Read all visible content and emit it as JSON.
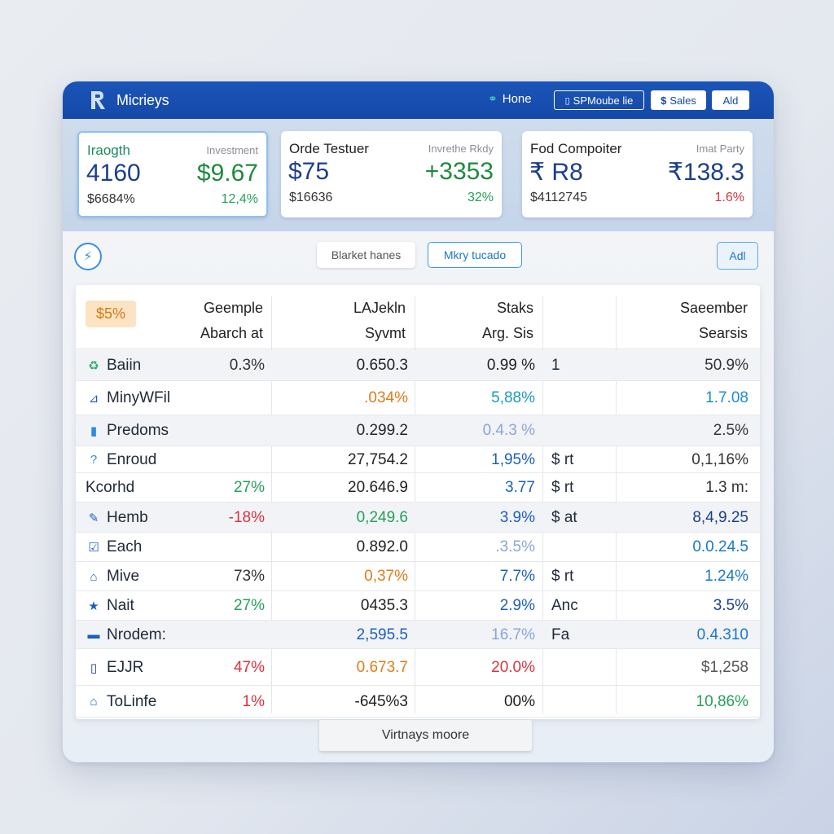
{
  "app": {
    "title": "Micrieys",
    "nav": {
      "home": "Hone",
      "mobile": "SPMoube lie",
      "sales": "Sales",
      "add": "Ald"
    }
  },
  "kpis": [
    {
      "title": "Iraogth",
      "subtitle": "Investment",
      "big1": "4160",
      "big2": "$9.67",
      "sub1": "$6684%",
      "sub2": "12,4%",
      "big2_color": "#1d8a3e",
      "sub2_color": "#24a05a"
    },
    {
      "title": "Orde Testuer",
      "subtitle": "Invrethe Rkdy",
      "big1": "$75",
      "big2": "+3353",
      "sub1": "$16636",
      "sub2": "32%",
      "big2_color": "#1d8a3e",
      "sub2_color": "#24a05a"
    },
    {
      "title": "Fod Compoiter",
      "subtitle": "Imat Party",
      "big1": "₹ R8",
      "big2": "₹138.3",
      "sub1": "$4112745",
      "sub2": "1.6%",
      "big2_color": "#1b3f8a",
      "sub2_color": "#d9333d"
    }
  ],
  "toolbar": {
    "market_btn": "Blarket hanes",
    "mode_btn": "Mkry tucado",
    "add_btn": "Adl"
  },
  "table": {
    "badge": "$5%",
    "headers": {
      "col1_line1": "Geemple",
      "col1_line2": "Abarch at",
      "col2_line1": "LAJekln",
      "col2_line2": "Syvmt",
      "col3_line1": "Staks",
      "col3_line2": "Arg. Sis",
      "col5_line1": "Saeember",
      "col5_line2": "Searsis"
    },
    "rows": [
      {
        "icon": "recycle-icon",
        "glyph": "♻",
        "icon_color": "#2fa86a",
        "name": "Baiin",
        "chg": "0.3%",
        "chg_color": "#333333",
        "val": "0.650.3",
        "val_color": "#222222",
        "pct": "0.99 %",
        "pct_color": "#222222",
        "s": "1",
        "last": "50.9%",
        "last_color": "#333333"
      },
      {
        "icon": "chart-icon",
        "glyph": "⊿",
        "icon_color": "#1c5fc0",
        "name": "MinyWFil",
        "chg": "",
        "chg_color": "#333333",
        "val": ".034%",
        "val_color": "#e07b1a",
        "pct": "5,88%",
        "pct_color": "#1a9cb8",
        "s": "",
        "last": "1.7.08",
        "last_color": "#1a8fc8"
      },
      {
        "icon": "doc-icon",
        "glyph": "▮",
        "icon_color": "#2a8be0",
        "name": "Predoms",
        "chg": "",
        "chg_color": "#333333",
        "val": "0.299.2",
        "val_color": "#222222",
        "pct": "0.4.3 %",
        "pct_color": "#8aa6d8",
        "s": "",
        "last": "2.5%",
        "last_color": "#333333"
      },
      {
        "icon": "help-icon",
        "glyph": "?",
        "icon_color": "#2a8be0",
        "name": "Enroud",
        "chg": "",
        "chg_color": "#333333",
        "val": "27,754.2",
        "val_color": "#222222",
        "pct": "1,95%",
        "pct_color": "#1c5fc0",
        "s": "$ rt",
        "last": "0,1,16%",
        "last_color": "#333333"
      },
      {
        "icon": "",
        "glyph": "",
        "icon_color": "#333333",
        "name": "Kcorhd",
        "chg": "27%",
        "chg_color": "#24a05a",
        "val": "20.646.9",
        "val_color": "#222222",
        "pct": "3.77",
        "pct_color": "#1c5fc0",
        "s": "$ rt",
        "last": "1.3 m:",
        "last_color": "#333333"
      },
      {
        "icon": "wrench-icon",
        "glyph": "✎",
        "icon_color": "#1c5fc0",
        "name": "Hemb",
        "chg": "-18%",
        "chg_color": "#d9333d",
        "val": "0,249.6",
        "val_color": "#24a05a",
        "pct": "3.9%",
        "pct_color": "#1c5fc0",
        "s": "$ at",
        "last": "8,4,9.25",
        "last_color": "#1b3f8a"
      },
      {
        "icon": "check-icon",
        "glyph": "☑",
        "icon_color": "#1c5fc0",
        "name": "Each",
        "chg": "",
        "chg_color": "#333333",
        "val": "0.892.0",
        "val_color": "#222222",
        "pct": ".3.5%",
        "pct_color": "#8aa6d8",
        "s": "",
        "last": "0.0.24.5",
        "last_color": "#1a78c8"
      },
      {
        "icon": "home-icon",
        "glyph": "⌂",
        "icon_color": "#1c5fc0",
        "name": "Mive",
        "chg": "73%",
        "chg_color": "#333333",
        "val": "0,37%",
        "val_color": "#e07b1a",
        "pct": "7.7%",
        "pct_color": "#1c5fc0",
        "s": "$ rt",
        "last": "1.24%",
        "last_color": "#1a78c8"
      },
      {
        "icon": "star-icon",
        "glyph": "★",
        "icon_color": "#1c5fc0",
        "name": "Nait",
        "chg": "27%",
        "chg_color": "#24a05a",
        "val": "0435.3",
        "val_color": "#222222",
        "pct": "2.9%",
        "pct_color": "#1c5fc0",
        "s": "Anc",
        "last": "3.5%",
        "last_color": "#1b3f8a"
      },
      {
        "icon": "card-icon",
        "glyph": "▬",
        "icon_color": "#1c5fc0",
        "name": "Nrodem:",
        "chg": "",
        "chg_color": "#333333",
        "val": "2,595.5",
        "val_color": "#1c5fc0",
        "pct": "16.7%",
        "pct_color": "#8aa6d8",
        "s": "Fa",
        "last": "0.4.310",
        "last_color": "#1a78c8"
      },
      {
        "icon": "phone-icon",
        "glyph": "▯",
        "icon_color": "#1b3f8a",
        "name": "EJJR",
        "chg": "47%",
        "chg_color": "#d9333d",
        "val": "0.673.7",
        "val_color": "#e07b1a",
        "pct": "20.0%",
        "pct_color": "#d9333d",
        "s": "",
        "last": "$1,258",
        "last_color": "#555555"
      },
      {
        "icon": "home-icon",
        "glyph": "⌂",
        "icon_color": "#1c5fc0",
        "name": "ToLinfe",
        "chg": "1%",
        "chg_color": "#d9333d",
        "val": "-645%3",
        "val_color": "#222222",
        "pct": "00%",
        "pct_color": "#222222",
        "s": "",
        "last": "10,86%",
        "last_color": "#24a05a"
      }
    ]
  },
  "footer": {
    "more_btn": "Virtnays moore"
  }
}
